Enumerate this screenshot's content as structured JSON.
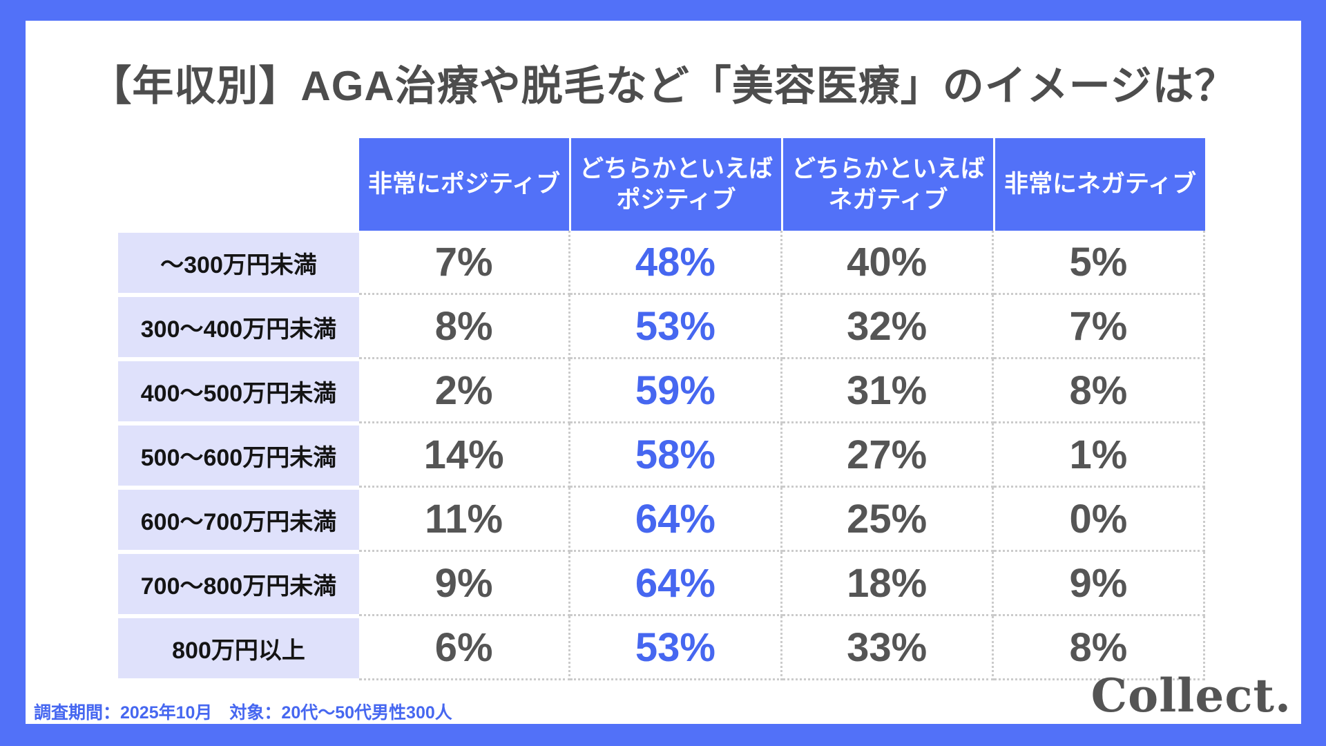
{
  "title": "【年収別】AGA治療や脱毛など「美容医療」のイメージは？",
  "table": {
    "headers": [
      "非常にポジティブ",
      "どちらかといえば\nポジティブ",
      "どちらかといえば\nネガティブ",
      "非常にネガティブ"
    ],
    "rows": [
      {
        "label": "～300万円未満",
        "values": [
          "7%",
          "48%",
          "40%",
          "5%"
        ]
      },
      {
        "label": "300～400万円未満",
        "values": [
          "8%",
          "53%",
          "32%",
          "7%"
        ]
      },
      {
        "label": "400～500万円未満",
        "values": [
          "2%",
          "59%",
          "31%",
          "8%"
        ]
      },
      {
        "label": "500～600万円未満",
        "values": [
          "14%",
          "58%",
          "27%",
          "1%"
        ]
      },
      {
        "label": "600～700万円未満",
        "values": [
          "11%",
          "64%",
          "25%",
          "0%"
        ]
      },
      {
        "label": "700～800万円未満",
        "values": [
          "9%",
          "64%",
          "18%",
          "9%"
        ]
      },
      {
        "label": "800万円以上",
        "values": [
          "6%",
          "53%",
          "33%",
          "8%"
        ]
      }
    ],
    "highlight_column_index": 1
  },
  "footer": {
    "note": "調査期間：2025年10月　対象：20代～50代男性300人",
    "logo": "Collect."
  },
  "colors": {
    "frame_blue": "#5271F8",
    "header_blue": "#5271F8",
    "row_label_lavender": "#DFE1FB",
    "highlight_text_blue": "#4667F0",
    "value_text_gray": "#555555",
    "title_gray": "#4D4D4D",
    "dotted_border": "#CBCBCB",
    "card_white": "#FFFFFF"
  },
  "chart_data": {
    "type": "table",
    "title": "【年収別】AGA治療や脱毛など「美容医療」のイメージは？",
    "row_dimension": "年収",
    "categories": [
      "～300万円未満",
      "300～400万円未満",
      "400～500万円未満",
      "500～600万円未満",
      "600～700万円未満",
      "700～800万円未満",
      "800万円以上"
    ],
    "series": [
      {
        "name": "非常にポジティブ",
        "unit": "%",
        "values": [
          7,
          8,
          2,
          14,
          11,
          9,
          6
        ]
      },
      {
        "name": "どちらかといえばポジティブ",
        "unit": "%",
        "values": [
          48,
          53,
          59,
          58,
          64,
          64,
          53
        ]
      },
      {
        "name": "どちらかといえばネガティブ",
        "unit": "%",
        "values": [
          40,
          32,
          31,
          27,
          25,
          18,
          33
        ]
      },
      {
        "name": "非常にネガティブ",
        "unit": "%",
        "values": [
          5,
          7,
          8,
          1,
          0,
          9,
          8
        ]
      }
    ],
    "note": "調査期間：2025年10月　対象：20代～50代男性300人"
  }
}
